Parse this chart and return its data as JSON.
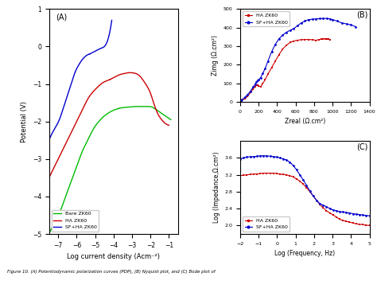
{
  "panel_A": {
    "label": "(A)",
    "xlabel": "Log current density (Acm⁻²)",
    "ylabel": "Potential (V)",
    "xlim": [
      -7.5,
      -0.5
    ],
    "ylim": [
      -5,
      1
    ],
    "xticks": [
      -7,
      -6,
      -5,
      -4,
      -3,
      -2,
      -1
    ],
    "yticks": [
      -5,
      -4,
      -3,
      -2,
      -1,
      0,
      1
    ],
    "legend": [
      "Bare ZK60",
      "HA ZK60",
      "SF+HA ZK60"
    ],
    "colors": [
      "#00bb00",
      "#cc0000",
      "#0000cc"
    ]
  },
  "panel_B": {
    "label": "(B)",
    "xlabel": "Zreal (Ω.cm²)",
    "ylabel": "Zimg (Ω.cm²)",
    "xlim": [
      0,
      1400
    ],
    "ylim": [
      0,
      500
    ],
    "xticks": [
      0,
      200,
      400,
      600,
      800,
      1000,
      1200,
      1400
    ],
    "yticks": [
      0,
      100,
      200,
      300,
      400,
      500
    ],
    "legend": [
      "HA ZK60",
      "SF+HA ZK60"
    ],
    "colors": [
      "#cc0000",
      "#0000cc"
    ]
  },
  "panel_C": {
    "label": "(C)",
    "xlabel": "Log (Frequency, Hz)",
    "ylabel": "Log (Impedance,Ω.cm²)",
    "xlim": [
      -2,
      5
    ],
    "ylim": [
      1.8,
      4.0
    ],
    "xticks": [
      -2,
      -1,
      0,
      1,
      2,
      3,
      4,
      5
    ],
    "yticks": [
      2.0,
      2.4,
      2.8,
      3.2,
      3.6
    ],
    "legend": [
      "HA ZK60",
      "SF+HA ZK60"
    ],
    "colors": [
      "#cc0000",
      "#0000cc"
    ]
  },
  "bg_color": "#ffffff",
  "bare_cat_x": [
    -7.5,
    -7.2,
    -6.9,
    -6.6,
    -6.3,
    -6.0,
    -5.7,
    -5.4,
    -5.1,
    -4.8,
    -4.5,
    -4.3,
    -4.1,
    -3.9,
    -3.7
  ],
  "bare_cat_y": [
    -5.0,
    -4.7,
    -4.4,
    -4.0,
    -3.6,
    -3.2,
    -2.8,
    -2.5,
    -2.2,
    -2.0,
    -1.85,
    -1.78,
    -1.72,
    -1.68,
    -1.65
  ],
  "bare_an_x": [
    -3.7,
    -3.5,
    -3.3,
    -3.1,
    -2.9,
    -2.7,
    -2.5,
    -2.3,
    -2.1,
    -1.9,
    -1.7,
    -1.5,
    -1.2,
    -0.9
  ],
  "bare_an_y": [
    -1.65,
    -1.63,
    -1.62,
    -1.61,
    -1.6,
    -1.6,
    -1.6,
    -1.6,
    -1.6,
    -1.62,
    -1.68,
    -1.75,
    -1.85,
    -1.95
  ],
  "ha_cat_x": [
    -7.5,
    -7.2,
    -6.9,
    -6.6,
    -6.3,
    -6.0,
    -5.7,
    -5.4,
    -5.1,
    -4.8,
    -4.6,
    -4.4,
    -4.2
  ],
  "ha_cat_y": [
    -3.5,
    -3.2,
    -2.9,
    -2.6,
    -2.3,
    -2.0,
    -1.7,
    -1.4,
    -1.2,
    -1.05,
    -0.97,
    -0.92,
    -0.88
  ],
  "ha_an_x": [
    -4.2,
    -4.0,
    -3.8,
    -3.6,
    -3.4,
    -3.2,
    -3.0,
    -2.8,
    -2.6,
    -2.4,
    -2.2,
    -2.0,
    -1.8,
    -1.6,
    -1.4,
    -1.2,
    -1.0
  ],
  "ha_an_y": [
    -0.88,
    -0.83,
    -0.78,
    -0.74,
    -0.72,
    -0.7,
    -0.7,
    -0.72,
    -0.78,
    -0.9,
    -1.05,
    -1.25,
    -1.55,
    -1.8,
    -1.95,
    -2.05,
    -2.1
  ],
  "sfha_cat_x": [
    -7.5,
    -7.2,
    -6.9,
    -6.7,
    -6.5,
    -6.3,
    -6.1,
    -5.9,
    -5.7,
    -5.5,
    -5.3
  ],
  "sfha_cat_y": [
    -2.5,
    -2.2,
    -1.9,
    -1.6,
    -1.3,
    -1.0,
    -0.7,
    -0.5,
    -0.35,
    -0.25,
    -0.2
  ],
  "sfha_an_x": [
    -5.3,
    -5.1,
    -4.9,
    -4.7,
    -4.5,
    -4.3,
    -4.1
  ],
  "sfha_an_y": [
    -0.2,
    -0.15,
    -0.1,
    -0.05,
    0.0,
    0.2,
    0.7
  ],
  "ha_zreal": [
    5,
    20,
    50,
    80,
    110,
    140,
    160,
    175,
    185,
    200,
    220,
    245,
    270,
    300,
    340,
    380,
    420,
    460,
    500,
    540,
    580,
    620,
    660,
    700,
    740,
    780,
    820,
    850,
    880,
    900,
    920,
    940,
    950,
    960,
    970
  ],
  "ha_zimg": [
    2,
    8,
    18,
    30,
    50,
    70,
    82,
    90,
    90,
    85,
    82,
    100,
    120,
    150,
    185,
    220,
    255,
    285,
    305,
    320,
    328,
    332,
    335,
    336,
    336,
    335,
    332,
    335,
    337,
    340,
    340,
    340,
    338,
    338,
    335
  ],
  "sfha_zreal": [
    5,
    20,
    50,
    80,
    110,
    140,
    160,
    175,
    185,
    200,
    220,
    245,
    270,
    300,
    340,
    380,
    420,
    460,
    500,
    540,
    580,
    620,
    660,
    700,
    740,
    780,
    820,
    860,
    900,
    940,
    970,
    1000,
    1050,
    1100,
    1150,
    1200,
    1250
  ],
  "sfha_zimg": [
    3,
    12,
    25,
    40,
    58,
    80,
    95,
    108,
    115,
    120,
    130,
    155,
    180,
    220,
    270,
    310,
    340,
    360,
    375,
    385,
    395,
    410,
    425,
    435,
    443,
    445,
    447,
    448,
    449,
    449,
    447,
    443,
    435,
    425,
    420,
    415,
    405
  ],
  "freq_log": [
    -2.0,
    -1.82,
    -1.64,
    -1.46,
    -1.28,
    -1.1,
    -0.92,
    -0.74,
    -0.56,
    -0.38,
    -0.2,
    -0.02,
    0.15,
    0.33,
    0.51,
    0.69,
    0.87,
    1.05,
    1.23,
    1.41,
    1.59,
    1.77,
    1.95,
    2.13,
    2.31,
    2.49,
    2.67,
    2.85,
    3.03,
    3.21,
    3.38,
    3.56,
    3.74,
    3.92,
    4.1,
    4.28,
    4.46,
    4.64,
    4.82,
    5.0
  ],
  "ha_imp": [
    3.18,
    3.19,
    3.2,
    3.21,
    3.22,
    3.22,
    3.23,
    3.24,
    3.24,
    3.24,
    3.24,
    3.23,
    3.22,
    3.21,
    3.2,
    3.18,
    3.15,
    3.1,
    3.05,
    2.98,
    2.9,
    2.8,
    2.7,
    2.6,
    2.5,
    2.42,
    2.35,
    2.3,
    2.25,
    2.2,
    2.15,
    2.12,
    2.1,
    2.08,
    2.06,
    2.04,
    2.03,
    2.02,
    2.01,
    2.0
  ],
  "sfha_imp": [
    3.58,
    3.6,
    3.62,
    3.63,
    3.63,
    3.64,
    3.65,
    3.65,
    3.65,
    3.64,
    3.63,
    3.62,
    3.6,
    3.58,
    3.55,
    3.5,
    3.42,
    3.32,
    3.2,
    3.08,
    2.95,
    2.82,
    2.7,
    2.6,
    2.52,
    2.48,
    2.45,
    2.4,
    2.37,
    2.35,
    2.33,
    2.32,
    2.31,
    2.3,
    2.28,
    2.27,
    2.26,
    2.25,
    2.24,
    2.23
  ]
}
